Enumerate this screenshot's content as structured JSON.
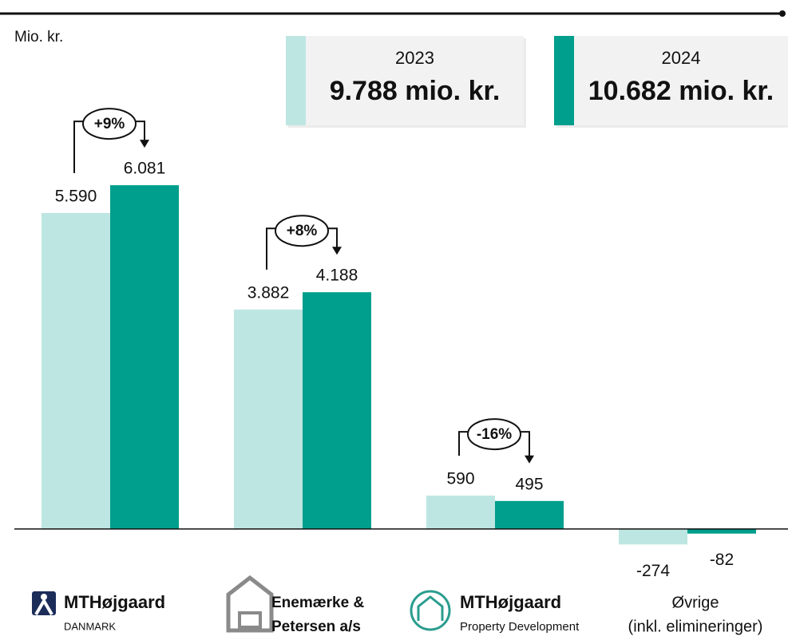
{
  "chart_data": {
    "type": "bar",
    "unit_label": "Mio. kr.",
    "categories": [
      [
        "MTHøjgaard",
        "DANMARK"
      ],
      [
        "Enemærke &",
        "Petersen a/s"
      ],
      [
        "MTHøjgaard",
        "Property Development"
      ],
      [
        "Øvrige",
        "(inkl. elimineringer)"
      ]
    ],
    "series": [
      {
        "name": "2023",
        "color": "#bde6e2",
        "values": [
          5590,
          3882,
          590,
          -274
        ],
        "value_labels": [
          "5.590",
          "3.882",
          "590",
          "-274"
        ],
        "total": "9.788 mio. kr."
      },
      {
        "name": "2024",
        "color": "#009e8c",
        "values": [
          6081,
          4188,
          495,
          -82
        ],
        "value_labels": [
          "6.081",
          "4.188",
          "495",
          "-82"
        ],
        "total": "10.682 mio. kr."
      }
    ],
    "annotations": [
      "+9%",
      "+8%",
      "-16%"
    ],
    "ylim": [
      -1950,
      7000
    ]
  }
}
